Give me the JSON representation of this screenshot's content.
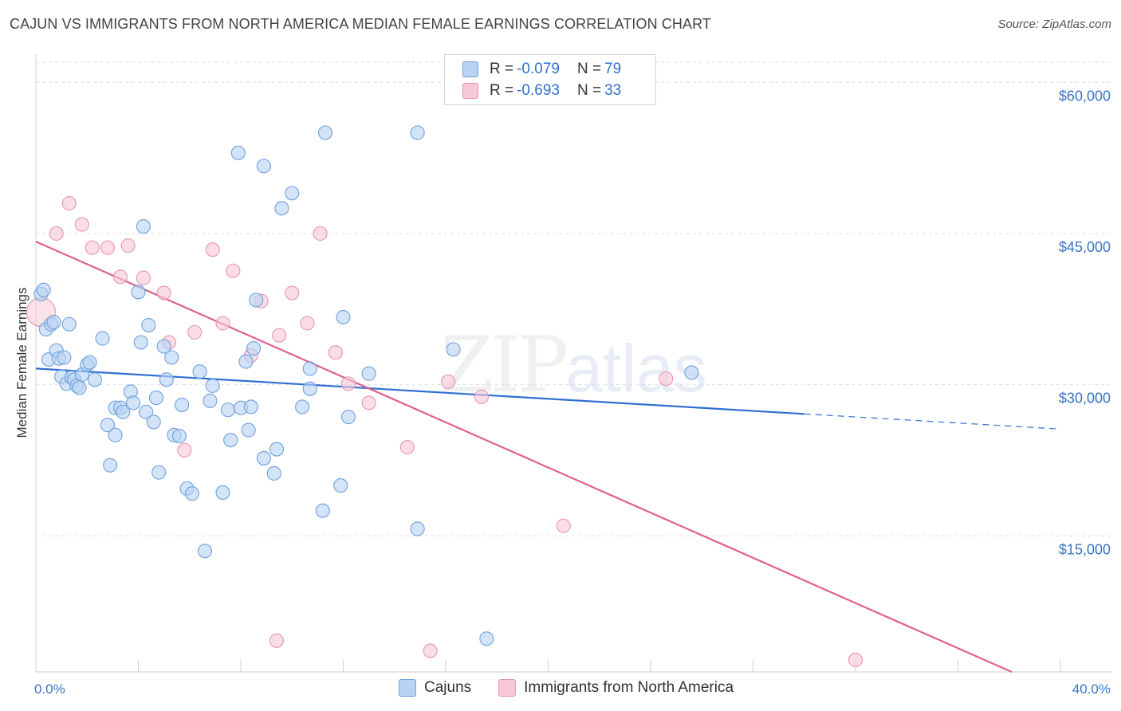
{
  "title": "CAJUN VS IMMIGRANTS FROM NORTH AMERICA MEDIAN FEMALE EARNINGS CORRELATION CHART",
  "source": "Source: ZipAtlas.com",
  "watermark": {
    "zip": "ZIP",
    "atlas": "atlas"
  },
  "legend": {
    "r_label": "R =",
    "n_label": "N =",
    "rows": [
      {
        "r": "-0.079",
        "n": "79"
      },
      {
        "r": "-0.693",
        "n": "33"
      }
    ]
  },
  "bottom_legend": [
    "Cajuns",
    "Immigrants from North America"
  ],
  "colors": {
    "blue_fill": "#b8d3f4",
    "blue_stroke": "#6fa0dd",
    "blue_line": "#2f6fd0",
    "pink_fill": "#f8c8d6",
    "pink_stroke": "#e895b0",
    "pink_line": "#e0608d",
    "grid": "#dddddd",
    "tick_text": "#3a75c4"
  },
  "chart_data": {
    "type": "scatter",
    "title": "CAJUN VS IMMIGRANTS FROM NORTH AMERICA MEDIAN FEMALE EARNINGS CORRELATION CHART",
    "xlabel": "",
    "ylabel": "Median Female Earnings",
    "xlim": [
      0,
      40
    ],
    "ylim": [
      1500,
      62000
    ],
    "x_tick_labels": [
      "0.0%",
      "40.0%"
    ],
    "y_ticks": [
      15000,
      30000,
      45000,
      60000
    ],
    "y_tick_labels": [
      "$15,000",
      "$30,000",
      "$45,000",
      "$60,000"
    ],
    "grid": true,
    "legend_position": "top-center",
    "series": [
      {
        "name": "Cajuns",
        "r": -0.079,
        "n": 79,
        "trend": {
          "x_start": 0,
          "y_start": 31600,
          "x_end": 30,
          "y_end": 27100,
          "dashed_to_x": 40,
          "dashed_to_y": 25600
        },
        "points": [
          [
            0.2,
            39000
          ],
          [
            0.3,
            39400
          ],
          [
            0.4,
            35500
          ],
          [
            0.5,
            32500
          ],
          [
            0.6,
            36000
          ],
          [
            0.7,
            36200
          ],
          [
            0.8,
            33400
          ],
          [
            0.9,
            32600
          ],
          [
            1.0,
            30800
          ],
          [
            1.1,
            32700
          ],
          [
            1.2,
            30100
          ],
          [
            1.3,
            36000
          ],
          [
            1.4,
            30700
          ],
          [
            1.5,
            30500
          ],
          [
            1.6,
            29900
          ],
          [
            1.7,
            29700
          ],
          [
            1.8,
            31000
          ],
          [
            2.0,
            32000
          ],
          [
            2.1,
            32200
          ],
          [
            2.3,
            30500
          ],
          [
            2.6,
            34600
          ],
          [
            2.8,
            26000
          ],
          [
            2.9,
            22000
          ],
          [
            3.1,
            25000
          ],
          [
            3.1,
            27700
          ],
          [
            3.3,
            27700
          ],
          [
            3.4,
            27300
          ],
          [
            3.7,
            29300
          ],
          [
            3.8,
            28200
          ],
          [
            4.0,
            39200
          ],
          [
            4.1,
            34200
          ],
          [
            4.2,
            45700
          ],
          [
            4.3,
            27300
          ],
          [
            4.4,
            35900
          ],
          [
            4.6,
            26300
          ],
          [
            4.7,
            28700
          ],
          [
            4.8,
            21300
          ],
          [
            5.0,
            33800
          ],
          [
            5.1,
            30500
          ],
          [
            5.3,
            32700
          ],
          [
            5.4,
            25000
          ],
          [
            5.6,
            24900
          ],
          [
            5.7,
            28000
          ],
          [
            5.9,
            19700
          ],
          [
            6.1,
            19200
          ],
          [
            6.4,
            31300
          ],
          [
            6.6,
            13500
          ],
          [
            6.8,
            28400
          ],
          [
            6.9,
            29900
          ],
          [
            7.3,
            19300
          ],
          [
            7.5,
            27500
          ],
          [
            7.6,
            24500
          ],
          [
            7.9,
            53000
          ],
          [
            8.0,
            27700
          ],
          [
            8.2,
            32300
          ],
          [
            8.3,
            25500
          ],
          [
            8.4,
            27800
          ],
          [
            8.5,
            33600
          ],
          [
            8.6,
            38400
          ],
          [
            8.9,
            51700
          ],
          [
            8.9,
            22700
          ],
          [
            9.3,
            21200
          ],
          [
            9.4,
            23600
          ],
          [
            9.6,
            47500
          ],
          [
            10.0,
            49000
          ],
          [
            10.4,
            27800
          ],
          [
            10.7,
            31600
          ],
          [
            10.7,
            29600
          ],
          [
            11.2,
            17500
          ],
          [
            11.3,
            55000
          ],
          [
            11.9,
            20000
          ],
          [
            12.0,
            36700
          ],
          [
            12.2,
            26800
          ],
          [
            13.0,
            31100
          ],
          [
            14.9,
            15700
          ],
          [
            14.9,
            55000
          ],
          [
            16.3,
            33500
          ],
          [
            17.6,
            4800
          ],
          [
            25.6,
            31200
          ]
        ]
      },
      {
        "name": "Immigrants from North America",
        "r": -0.693,
        "n": 33,
        "trend": {
          "x_start": 0,
          "y_start": 44200,
          "x_end": 38.1,
          "y_end": 1500
        },
        "points": [
          [
            0.2,
            37200
          ],
          [
            0.8,
            45000
          ],
          [
            1.3,
            48000
          ],
          [
            1.8,
            45900
          ],
          [
            2.2,
            43600
          ],
          [
            2.8,
            43600
          ],
          [
            3.3,
            40700
          ],
          [
            3.6,
            43800
          ],
          [
            4.2,
            40600
          ],
          [
            5.0,
            39100
          ],
          [
            5.2,
            34200
          ],
          [
            5.8,
            23500
          ],
          [
            6.2,
            35200
          ],
          [
            6.9,
            43400
          ],
          [
            7.3,
            36100
          ],
          [
            7.7,
            41300
          ],
          [
            8.4,
            32900
          ],
          [
            8.8,
            38300
          ],
          [
            9.4,
            4600
          ],
          [
            9.5,
            34900
          ],
          [
            10.0,
            39100
          ],
          [
            10.6,
            36100
          ],
          [
            11.1,
            45000
          ],
          [
            11.7,
            33200
          ],
          [
            12.2,
            30100
          ],
          [
            13.0,
            28200
          ],
          [
            14.5,
            23800
          ],
          [
            15.4,
            3600
          ],
          [
            16.1,
            30300
          ],
          [
            17.4,
            28800
          ],
          [
            20.6,
            16000
          ],
          [
            24.6,
            30600
          ],
          [
            32.0,
            2700
          ]
        ]
      }
    ]
  }
}
